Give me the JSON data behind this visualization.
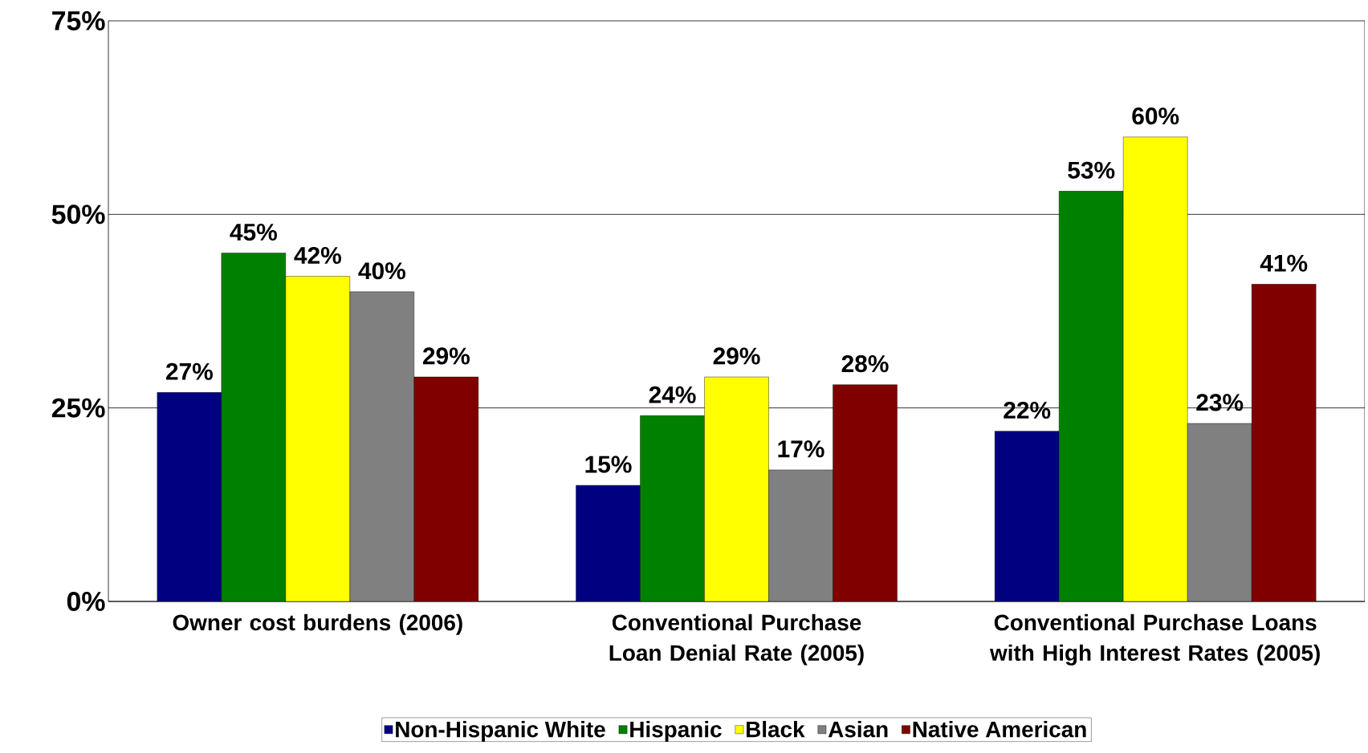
{
  "chart_data": {
    "type": "bar",
    "categories": [
      "Owner cost burdens (2006)",
      "Conventional Purchase Loan Denial Rate (2005)",
      "Conventional Purchase Loans with High Interest Rates (2005)"
    ],
    "series": [
      {
        "name": "Non-Hispanic White",
        "color": "#000080",
        "values": [
          27,
          15,
          22
        ],
        "value_labels": [
          "27%",
          "15%",
          "22%"
        ]
      },
      {
        "name": "Hispanic",
        "color": "#008000",
        "values": [
          45,
          24,
          53
        ],
        "value_labels": [
          "45%",
          "24%",
          "53%"
        ]
      },
      {
        "name": "Black",
        "color": "#ffff00",
        "values": [
          42,
          29,
          60
        ],
        "value_labels": [
          "42%",
          "29%",
          "60%"
        ]
      },
      {
        "name": "Asian",
        "color": "#808080",
        "values": [
          40,
          17,
          23
        ],
        "value_labels": [
          "40%",
          "17%",
          "23%"
        ]
      },
      {
        "name": "Native American",
        "color": "#800000",
        "values": [
          29,
          28,
          41
        ],
        "value_labels": [
          "29%",
          "28%",
          "41%"
        ]
      }
    ],
    "ylim": [
      0,
      75
    ],
    "yticks": [
      {
        "value": 0,
        "label": "0%"
      },
      {
        "value": 25,
        "label": "25%"
      },
      {
        "value": 50,
        "label": "50%"
      },
      {
        "value": 75,
        "label": "75%"
      }
    ],
    "grid": "y",
    "legend": "bottom"
  }
}
